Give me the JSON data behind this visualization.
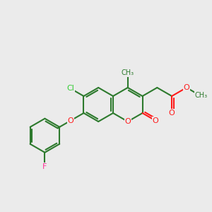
{
  "background_color": "#EBEBEB",
  "bond_color": "#2d7a2d",
  "atom_colors": {
    "O": "#ff1a1a",
    "Cl": "#33cc33",
    "F": "#ff3399"
  },
  "figsize": [
    3.0,
    3.0
  ],
  "dpi": 100,
  "bl": 24
}
